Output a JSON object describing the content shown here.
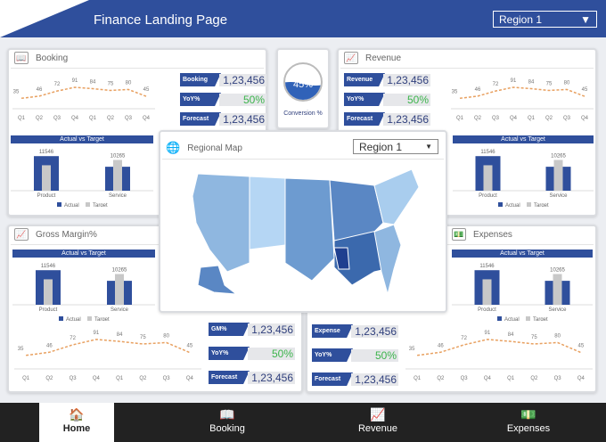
{
  "header": {
    "title": "Finance Landing Page",
    "region_select": "Region 1"
  },
  "colors": {
    "primary": "#2f4f9c",
    "positive": "#3cb44b",
    "line": "#e8a060",
    "target": "#c8c8c8"
  },
  "quarters": [
    "Q1",
    "Q2",
    "Q3",
    "Q4",
    "Q1",
    "Q2",
    "Q3",
    "Q4"
  ],
  "trend_values": [
    35,
    46,
    72,
    91,
    84,
    75,
    80,
    45
  ],
  "actual_vs_target": {
    "title": "Actual vs Target",
    "categories": [
      "Product",
      "Service"
    ],
    "actual": [
      11546,
      8000
    ],
    "target": [
      8500,
      10265
    ],
    "labels": [
      "11546",
      "10265"
    ],
    "legend": [
      "Actual",
      "Target"
    ]
  },
  "booking": {
    "title": "Booking",
    "icon": "book-icon",
    "kpis": [
      {
        "label": "Booking",
        "value": "1,23,456"
      },
      {
        "label": "YoY%",
        "value": "50%"
      },
      {
        "label": "Forecast",
        "value": "1,23,456"
      }
    ]
  },
  "revenue": {
    "title": "Revenue",
    "icon": "chart-up-icon",
    "kpis": [
      {
        "label": "Revenue",
        "value": "1,23,456"
      },
      {
        "label": "YoY%",
        "value": "50%"
      },
      {
        "label": "Forecast",
        "value": "1,23,456"
      }
    ]
  },
  "gross_margin": {
    "title": "Gross Margin%",
    "icon": "chart-up-icon",
    "kpis": [
      {
        "label": "GM%",
        "value": "1,23,456"
      },
      {
        "label": "YoY%",
        "value": "50%"
      },
      {
        "label": "Forecast",
        "value": "1,23,456"
      }
    ]
  },
  "expenses": {
    "title": "Expenses",
    "icon": "money-icon",
    "kpis": [
      {
        "label": "Expense",
        "value": "1,23,456"
      },
      {
        "label": "YoY%",
        "value": "50%"
      },
      {
        "label": "Forecast",
        "value": "1,23,456"
      }
    ]
  },
  "conversion": {
    "value": "45%",
    "fill": 45,
    "label": "Conversion %"
  },
  "map": {
    "title": "Regional Map",
    "region_select": "Region 1"
  },
  "nav": [
    {
      "label": "Home",
      "icon": "home-icon",
      "active": true
    },
    {
      "label": "Booking",
      "icon": "book-icon"
    },
    {
      "label": "Revenue",
      "icon": "chart-up-icon"
    },
    {
      "label": "Expenses",
      "icon": "money-icon"
    }
  ]
}
